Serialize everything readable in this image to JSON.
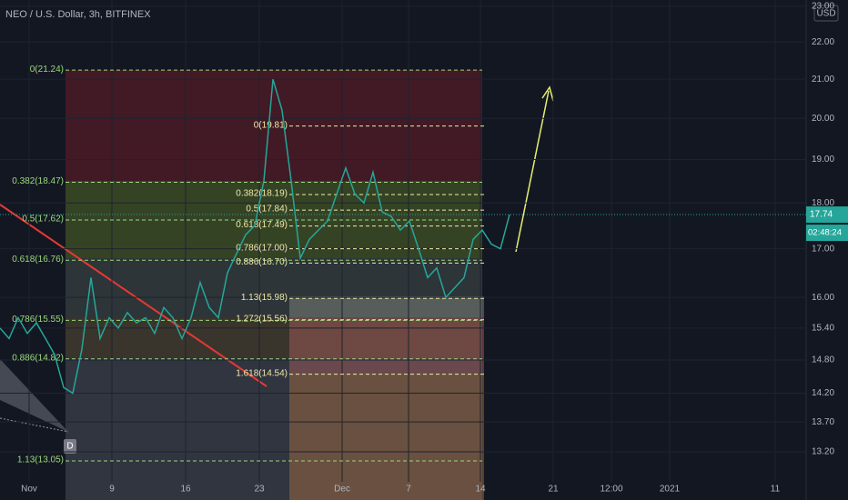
{
  "header": {
    "title": "NEO / U.S. Dollar, 3h, BITFINEX"
  },
  "price_axis": {
    "unit": "USD",
    "log": true,
    "ylim": [
      12.43,
      23.18
    ],
    "ticks": [
      {
        "value": 23,
        "label": "23.00"
      },
      {
        "value": 22,
        "label": "22.00"
      },
      {
        "value": 21,
        "label": "21.00"
      },
      {
        "value": 20,
        "label": "20.00"
      },
      {
        "value": 19,
        "label": "19.00"
      },
      {
        "value": 18,
        "label": "18.00"
      },
      {
        "value": 17,
        "label": "17.00"
      },
      {
        "value": 16,
        "label": "16.00"
      },
      {
        "value": 15.4,
        "label": "15.40"
      },
      {
        "value": 14.8,
        "label": "14.80"
      },
      {
        "value": 14.2,
        "label": "14.20"
      },
      {
        "value": 13.7,
        "label": "13.70"
      },
      {
        "value": 13.2,
        "label": "13.20"
      }
    ]
  },
  "date_axis": {
    "labels": [
      "Nov",
      "9",
      "16",
      "23",
      "Dec",
      "7",
      "14",
      "21",
      "12:00",
      "2021",
      "11"
    ]
  },
  "price": {
    "color": "#26a69a",
    "values": [
      15.4,
      15.2,
      15.6,
      15.3,
      15.5,
      15.2,
      14.9,
      14.3,
      14.2,
      15.0,
      16.4,
      15.2,
      15.6,
      15.4,
      15.7,
      15.5,
      15.6,
      15.3,
      15.8,
      15.6,
      15.2,
      15.6,
      16.3,
      15.8,
      15.6,
      16.5,
      16.9,
      17.3,
      17.5,
      18.5,
      21.0,
      20.2,
      18.5,
      16.8,
      17.2,
      17.4,
      17.6,
      18.2,
      18.8,
      18.2,
      18.0,
      18.7,
      17.8,
      17.7,
      17.4,
      17.6,
      17.0,
      16.4,
      16.6,
      16.0,
      16.2,
      16.4,
      17.2,
      17.4,
      17.1,
      17.0,
      17.74
    ]
  },
  "fib_left": [
    {
      "label": "0(21.24)",
      "value": 21.24
    },
    {
      "label": "0.382(18.47)",
      "value": 18.47
    },
    {
      "label": "0.5(17.62)",
      "value": 17.62
    },
    {
      "label": "0.618(16.76)",
      "value": 16.76
    },
    {
      "label": "0.786(15.55)",
      "value": 15.55
    },
    {
      "label": "0.886(14.82)",
      "value": 14.82
    },
    {
      "label": "1.13(13.05)",
      "value": 13.05
    }
  ],
  "fib_right": [
    {
      "label": "0(19.81)",
      "value": 19.81
    },
    {
      "label": "0.382(18.19)",
      "value": 18.19
    },
    {
      "label": "0.5(17.84)",
      "value": 17.84
    },
    {
      "label": "0.618(17.49)",
      "value": 17.49
    },
    {
      "label": "0.786(17.00)",
      "value": 17.0
    },
    {
      "label": "0.886(16.70)",
      "value": 16.7
    },
    {
      "label": "1.13(15.98)",
      "value": 15.98
    },
    {
      "label": "1.272(15.56)",
      "value": 15.56
    },
    {
      "label": "1.618(14.54)",
      "value": 14.54
    }
  ],
  "last_price": {
    "label": "17.74",
    "value": 17.74
  },
  "countdown": "02:48:24",
  "marker": "D"
}
